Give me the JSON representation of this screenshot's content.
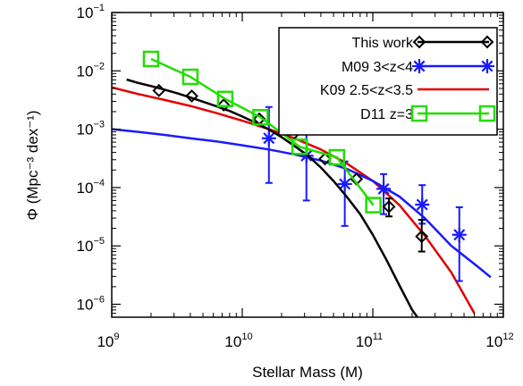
{
  "chart_data": {
    "type": "line",
    "title": "",
    "xlabel": "Stellar Mass (M)",
    "ylabel": "Φ (Mpc⁻³ dex⁻¹)",
    "xscale": "log",
    "yscale": "log",
    "xlim": [
      1000000000.0,
      1000000000000.0
    ],
    "ylim": [
      6e-07,
      0.1
    ],
    "x_ticks": [
      {
        "base": "10",
        "exp": "9",
        "value": 1000000000.0
      },
      {
        "base": "10",
        "exp": "10",
        "value": 10000000000.0
      },
      {
        "base": "10",
        "exp": "11",
        "value": 100000000000.0
      },
      {
        "base": "10",
        "exp": "12",
        "value": 1000000000000.0
      }
    ],
    "y_ticks": [
      {
        "base": "10",
        "exp": "−6",
        "value": 1e-06
      },
      {
        "base": "10",
        "exp": "−5",
        "value": 1e-05
      },
      {
        "base": "10",
        "exp": "−4",
        "value": 0.0001
      },
      {
        "base": "10",
        "exp": "−3",
        "value": 0.001
      },
      {
        "base": "10",
        "exp": "−2",
        "value": 0.01
      },
      {
        "base": "10",
        "exp": "−1",
        "value": 0.1
      }
    ],
    "grid": false,
    "legend_position": "top-right",
    "series": [
      {
        "name": "This work",
        "color": "#000000",
        "marker": "diamond",
        "style": "points-and-fit",
        "x": [
          2300000000.0,
          4100000000.0,
          7200000000.0,
          13500000000.0,
          24000000000.0,
          43000000000.0,
          75000000000.0,
          133000000000.0,
          237000000000.0
        ],
        "y": [
          0.0046,
          0.0037,
          0.0026,
          0.0015,
          0.00078,
          0.00031,
          0.00014,
          4.7e-05,
          1.45e-05
        ],
        "yerr_low": [
          null,
          null,
          null,
          null,
          null,
          null,
          null,
          3.2e-05,
          8e-06
        ],
        "yerr_high": [
          null,
          null,
          null,
          null,
          null,
          null,
          null,
          6.5e-05,
          2.8e-05
        ],
        "fit_x": [
          1300000000.0,
          1600000000.0,
          2000000000.0,
          2500000000.0,
          3200000000.0,
          4000000000.0,
          5000000000.0,
          6300000000.0,
          8000000000.0,
          10000000000.0,
          12600000000.0,
          16000000000.0,
          20000000000.0,
          25000000000.0,
          32000000000.0,
          40000000000.0,
          50000000000.0,
          63000000000.0,
          80000000000.0,
          100000000000.0,
          126000000000.0,
          160000000000.0,
          200000000000.0,
          250000000000.0,
          320000000000.0
        ],
        "fit_y": [
          0.0071,
          0.0062,
          0.0055,
          0.0048,
          0.0041,
          0.0035,
          0.00296,
          0.00248,
          0.00205,
          0.00165,
          0.0013,
          0.00099,
          0.00073,
          0.00052,
          0.00035,
          0.00022,
          0.00013,
          7e-05,
          3.5e-05,
          1.55e-05,
          6e-06,
          2.1e-06,
          8e-07,
          4e-07,
          1.5e-07
        ]
      },
      {
        "name": "M09 3<z<4",
        "color": "#1a1aff",
        "marker": "asterisk",
        "style": "points-and-fit",
        "x": [
          16000000000.0,
          31000000000.0,
          61000000000.0,
          121000000000.0,
          239000000000.0,
          460000000000.0
        ],
        "y": [
          0.0007,
          0.00035,
          0.000115,
          9.5e-05,
          5.1e-05,
          1.55e-05
        ],
        "yerr_low": [
          0.00012,
          6e-05,
          2.2e-05,
          3.5e-05,
          2.4e-05,
          2.5e-06
        ],
        "yerr_high": [
          0.0024,
          0.0011,
          0.00028,
          0.00017,
          0.00011,
          4.6e-05
        ],
        "fit_x": [
          1000000000.0,
          1600000000.0,
          2500000000.0,
          4000000000.0,
          6300000000.0,
          10000000000.0,
          16000000000.0,
          25000000000.0,
          40000000000.0,
          63000000000.0,
          100000000000.0,
          160000000000.0,
          250000000000.0,
          400000000000.0,
          630000000000.0,
          800000000000.0
        ],
        "fit_y": [
          0.001,
          0.0009,
          0.0008,
          0.0007,
          0.00062,
          0.00053,
          0.00045,
          0.00037,
          0.00029,
          0.00021,
          0.00013,
          7e-05,
          3e-05,
          1e-05,
          4.5e-06,
          2.9e-06
        ]
      },
      {
        "name": "K09 2.5<z<3.5",
        "color": "#e00000",
        "marker": "none",
        "style": "line",
        "x": [
          1000000000.0,
          1600000000.0,
          2500000000.0,
          4000000000.0,
          6300000000.0,
          10000000000.0,
          16000000000.0,
          25000000000.0,
          40000000000.0,
          63000000000.0,
          100000000000.0,
          160000000000.0,
          250000000000.0,
          400000000000.0,
          600000000000.0
        ],
        "y": [
          0.0052,
          0.004,
          0.0032,
          0.0025,
          0.0019,
          0.0014,
          0.001,
          0.0007,
          0.00045,
          0.00026,
          0.00013,
          5e-05,
          1.5e-05,
          3.5e-06,
          7e-07
        ]
      },
      {
        "name": "D11 z=3",
        "color": "#22dd00",
        "marker": "square",
        "style": "points-and-line",
        "x": [
          2000000000.0,
          4000000000.0,
          7400000000.0,
          13800000000.0,
          27500000000.0,
          53000000000.0,
          101000000000.0
        ],
        "y": [
          0.016,
          0.0079,
          0.0033,
          0.0016,
          0.0005,
          0.00033,
          5e-05
        ]
      }
    ]
  }
}
